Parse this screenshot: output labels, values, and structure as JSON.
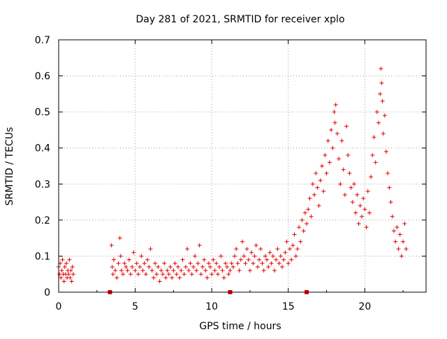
{
  "chart_data": {
    "type": "scatter",
    "title": "Day 281 of 2021, SRMTID for receiver xplo",
    "xlabel": "GPS time / hours",
    "ylabel": "SRMTID / TECUs",
    "xlim": [
      0,
      24
    ],
    "ylim": [
      0,
      0.7
    ],
    "xticks": [
      0,
      5,
      10,
      15,
      20
    ],
    "yticks": [
      0,
      0.1,
      0.2,
      0.3,
      0.4,
      0.5,
      0.6,
      0.7
    ],
    "xtick_labels": [
      "0",
      "5",
      "10",
      "15",
      "20"
    ],
    "ytick_labels": [
      "0",
      "0.1",
      "0.2",
      "0.3",
      "0.4",
      "0.5",
      "0.6",
      "0.7"
    ],
    "grid": true,
    "marker": "+",
    "color": "#e00000",
    "series_points": [
      [
        0.0,
        0.07
      ],
      [
        0.05,
        0.05
      ],
      [
        0.1,
        0.08
      ],
      [
        0.15,
        0.04
      ],
      [
        0.2,
        0.06
      ],
      [
        0.25,
        0.09
      ],
      [
        0.3,
        0.05
      ],
      [
        0.35,
        0.03
      ],
      [
        0.4,
        0.07
      ],
      [
        0.45,
        0.05
      ],
      [
        0.5,
        0.08
      ],
      [
        0.55,
        0.04
      ],
      [
        0.6,
        0.06
      ],
      [
        0.65,
        0.05
      ],
      [
        0.7,
        0.09
      ],
      [
        0.75,
        0.04
      ],
      [
        0.8,
        0.06
      ],
      [
        0.85,
        0.03
      ],
      [
        0.9,
        0.07
      ],
      [
        0.95,
        0.05
      ],
      [
        3.45,
        0.13
      ],
      [
        3.5,
        0.07
      ],
      [
        3.55,
        0.05
      ],
      [
        3.6,
        0.09
      ],
      [
        3.7,
        0.06
      ],
      [
        3.8,
        0.04
      ],
      [
        3.9,
        0.08
      ],
      [
        4.0,
        0.15
      ],
      [
        4.05,
        0.1
      ],
      [
        4.1,
        0.06
      ],
      [
        4.2,
        0.05
      ],
      [
        4.3,
        0.08
      ],
      [
        4.4,
        0.07
      ],
      [
        4.5,
        0.06
      ],
      [
        4.6,
        0.09
      ],
      [
        4.7,
        0.05
      ],
      [
        4.8,
        0.07
      ],
      [
        4.9,
        0.11
      ],
      [
        5.0,
        0.06
      ],
      [
        5.1,
        0.08
      ],
      [
        5.2,
        0.05
      ],
      [
        5.3,
        0.07
      ],
      [
        5.4,
        0.1
      ],
      [
        5.5,
        0.06
      ],
      [
        5.6,
        0.08
      ],
      [
        5.7,
        0.05
      ],
      [
        5.8,
        0.09
      ],
      [
        5.9,
        0.07
      ],
      [
        6.0,
        0.12
      ],
      [
        6.1,
        0.06
      ],
      [
        6.2,
        0.04
      ],
      [
        6.3,
        0.08
      ],
      [
        6.4,
        0.05
      ],
      [
        6.5,
        0.07
      ],
      [
        6.6,
        0.03
      ],
      [
        6.7,
        0.06
      ],
      [
        6.8,
        0.05
      ],
      [
        6.9,
        0.08
      ],
      [
        7.0,
        0.04
      ],
      [
        7.1,
        0.06
      ],
      [
        7.2,
        0.05
      ],
      [
        7.3,
        0.07
      ],
      [
        7.4,
        0.04
      ],
      [
        7.5,
        0.06
      ],
      [
        7.6,
        0.08
      ],
      [
        7.7,
        0.05
      ],
      [
        7.8,
        0.07
      ],
      [
        7.9,
        0.04
      ],
      [
        8.0,
        0.06
      ],
      [
        8.1,
        0.09
      ],
      [
        8.2,
        0.05
      ],
      [
        8.3,
        0.07
      ],
      [
        8.4,
        0.12
      ],
      [
        8.5,
        0.06
      ],
      [
        8.6,
        0.08
      ],
      [
        8.7,
        0.05
      ],
      [
        8.8,
        0.07
      ],
      [
        8.9,
        0.1
      ],
      [
        9.0,
        0.06
      ],
      [
        9.1,
        0.08
      ],
      [
        9.2,
        0.13
      ],
      [
        9.3,
        0.05
      ],
      [
        9.4,
        0.07
      ],
      [
        9.5,
        0.09
      ],
      [
        9.6,
        0.06
      ],
      [
        9.7,
        0.04
      ],
      [
        9.8,
        0.08
      ],
      [
        9.9,
        0.07
      ],
      [
        10.0,
        0.05
      ],
      [
        10.1,
        0.09
      ],
      [
        10.2,
        0.06
      ],
      [
        10.3,
        0.08
      ],
      [
        10.4,
        0.05
      ],
      [
        10.5,
        0.07
      ],
      [
        10.6,
        0.1
      ],
      [
        10.7,
        0.06
      ],
      [
        10.8,
        0.04
      ],
      [
        10.9,
        0.08
      ],
      [
        11.0,
        0.07
      ],
      [
        11.1,
        0.05
      ],
      [
        11.2,
        0.06
      ],
      [
        11.3,
        0.08
      ],
      [
        11.4,
        0.07
      ],
      [
        11.5,
        0.1
      ],
      [
        11.6,
        0.12
      ],
      [
        11.7,
        0.08
      ],
      [
        11.8,
        0.06
      ],
      [
        11.9,
        0.09
      ],
      [
        12.0,
        0.14
      ],
      [
        12.1,
        0.1
      ],
      [
        12.2,
        0.08
      ],
      [
        12.3,
        0.12
      ],
      [
        12.4,
        0.09
      ],
      [
        12.5,
        0.06
      ],
      [
        12.6,
        0.11
      ],
      [
        12.7,
        0.08
      ],
      [
        12.8,
        0.1
      ],
      [
        12.9,
        0.13
      ],
      [
        13.0,
        0.07
      ],
      [
        13.1,
        0.09
      ],
      [
        13.2,
        0.12
      ],
      [
        13.3,
        0.08
      ],
      [
        13.4,
        0.06
      ],
      [
        13.5,
        0.1
      ],
      [
        13.6,
        0.09
      ],
      [
        13.7,
        0.07
      ],
      [
        13.8,
        0.11
      ],
      [
        13.9,
        0.08
      ],
      [
        14.0,
        0.1
      ],
      [
        14.1,
        0.06
      ],
      [
        14.2,
        0.09
      ],
      [
        14.3,
        0.12
      ],
      [
        14.4,
        0.08
      ],
      [
        14.5,
        0.1
      ],
      [
        14.6,
        0.07
      ],
      [
        14.7,
        0.09
      ],
      [
        14.8,
        0.11
      ],
      [
        14.9,
        0.14
      ],
      [
        15.0,
        0.08
      ],
      [
        15.1,
        0.12
      ],
      [
        15.2,
        0.09
      ],
      [
        15.3,
        0.13
      ],
      [
        15.4,
        0.16
      ],
      [
        15.5,
        0.1
      ],
      [
        15.6,
        0.12
      ],
      [
        15.7,
        0.18
      ],
      [
        15.8,
        0.14
      ],
      [
        15.9,
        0.2
      ],
      [
        16.0,
        0.17
      ],
      [
        16.1,
        0.22
      ],
      [
        16.2,
        0.19
      ],
      [
        16.3,
        0.23
      ],
      [
        16.4,
        0.26
      ],
      [
        16.5,
        0.21
      ],
      [
        16.6,
        0.3
      ],
      [
        16.7,
        0.27
      ],
      [
        16.8,
        0.33
      ],
      [
        16.9,
        0.29
      ],
      [
        17.0,
        0.24
      ],
      [
        17.1,
        0.31
      ],
      [
        17.2,
        0.35
      ],
      [
        17.3,
        0.28
      ],
      [
        17.4,
        0.38
      ],
      [
        17.5,
        0.33
      ],
      [
        17.6,
        0.42
      ],
      [
        17.7,
        0.36
      ],
      [
        17.8,
        0.45
      ],
      [
        17.9,
        0.4
      ],
      [
        18.0,
        0.5
      ],
      [
        18.05,
        0.47
      ],
      [
        18.1,
        0.52
      ],
      [
        18.2,
        0.44
      ],
      [
        18.3,
        0.37
      ],
      [
        18.4,
        0.3
      ],
      [
        18.5,
        0.42
      ],
      [
        18.6,
        0.34
      ],
      [
        18.7,
        0.27
      ],
      [
        18.8,
        0.46
      ],
      [
        18.9,
        0.38
      ],
      [
        19.0,
        0.33
      ],
      [
        19.1,
        0.29
      ],
      [
        19.2,
        0.25
      ],
      [
        19.3,
        0.3
      ],
      [
        19.4,
        0.22
      ],
      [
        19.5,
        0.27
      ],
      [
        19.6,
        0.19
      ],
      [
        19.7,
        0.24
      ],
      [
        19.8,
        0.21
      ],
      [
        19.9,
        0.26
      ],
      [
        20.0,
        0.23
      ],
      [
        20.1,
        0.18
      ],
      [
        20.2,
        0.28
      ],
      [
        20.3,
        0.22
      ],
      [
        20.4,
        0.32
      ],
      [
        20.5,
        0.38
      ],
      [
        20.6,
        0.43
      ],
      [
        20.7,
        0.36
      ],
      [
        20.8,
        0.5
      ],
      [
        20.9,
        0.47
      ],
      [
        21.0,
        0.55
      ],
      [
        21.05,
        0.62
      ],
      [
        21.1,
        0.58
      ],
      [
        21.15,
        0.53
      ],
      [
        21.2,
        0.44
      ],
      [
        21.3,
        0.49
      ],
      [
        21.4,
        0.39
      ],
      [
        21.5,
        0.33
      ],
      [
        21.6,
        0.29
      ],
      [
        21.7,
        0.25
      ],
      [
        21.8,
        0.21
      ],
      [
        21.9,
        0.17
      ],
      [
        22.0,
        0.14
      ],
      [
        22.1,
        0.18
      ],
      [
        22.2,
        0.12
      ],
      [
        22.3,
        0.16
      ],
      [
        22.4,
        0.1
      ],
      [
        22.5,
        0.14
      ],
      [
        22.6,
        0.19
      ],
      [
        22.7,
        0.12
      ]
    ],
    "gap_markers_x": [
      3.35,
      11.2,
      16.2
    ]
  }
}
